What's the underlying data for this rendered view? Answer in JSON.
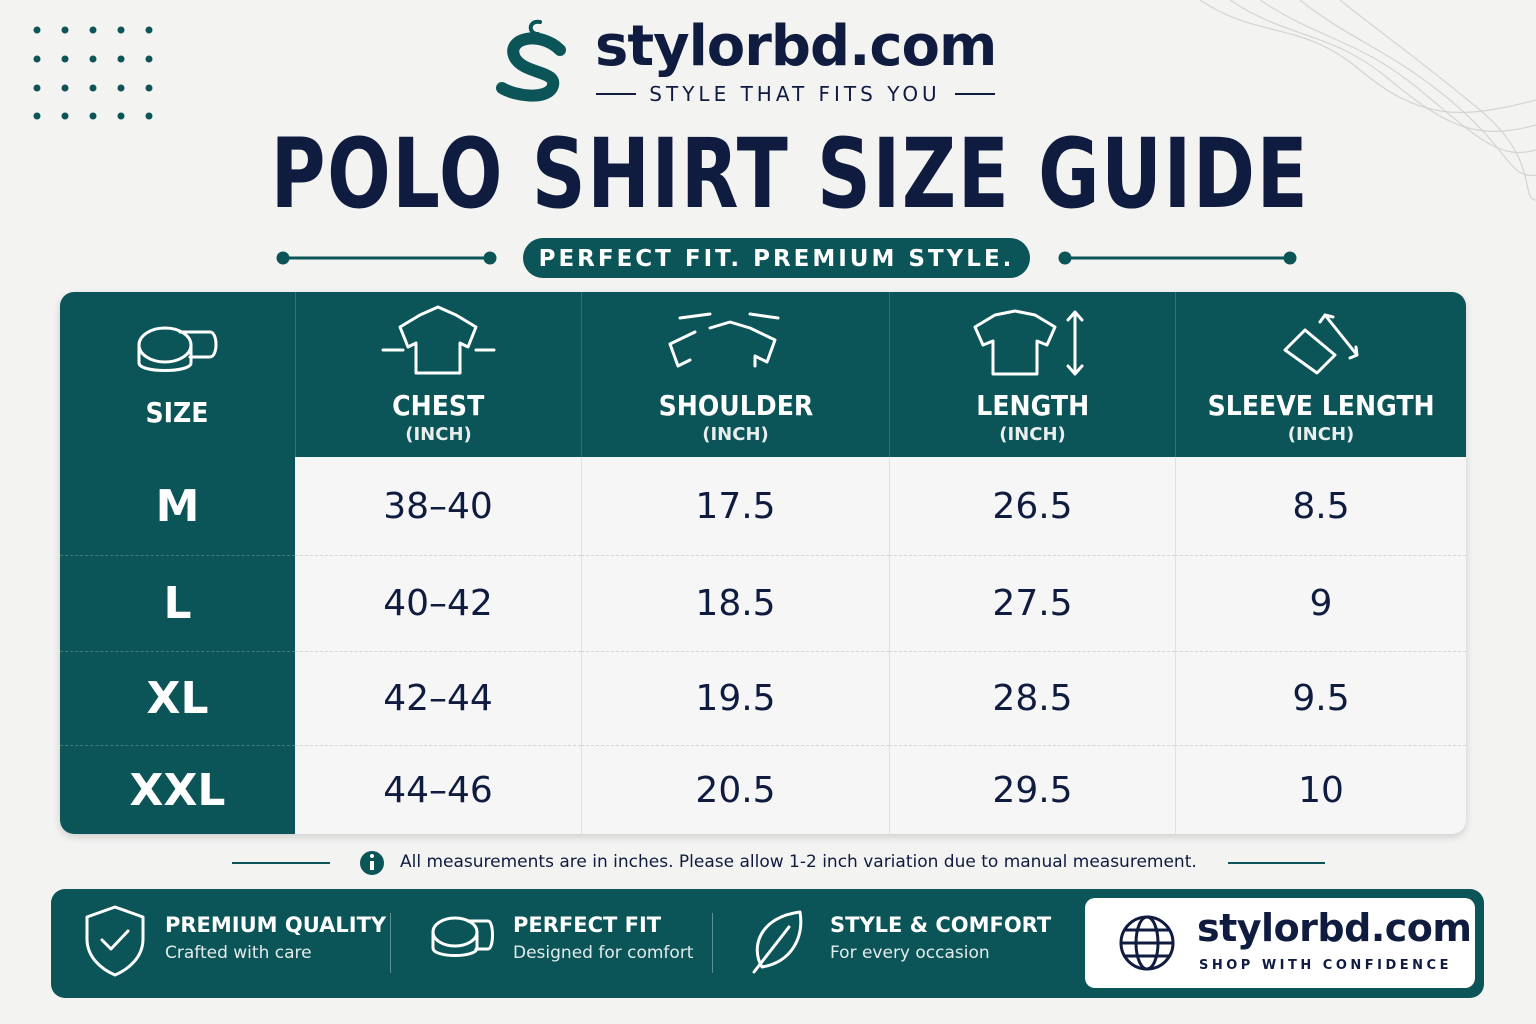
{
  "header": {
    "brand": "stylorbd.com",
    "tagline": "STYLE THAT FITS YOU",
    "title": "POLO SHIRT SIZE GUIDE",
    "subtitle": "PERFECT FIT. PREMIUM STYLE."
  },
  "table": {
    "columns": [
      {
        "name": "SIZE"
      },
      {
        "name": "CHEST",
        "unit": "(INCH)"
      },
      {
        "name": "SHOULDER",
        "unit": "(INCH)"
      },
      {
        "name": "LENGTH",
        "unit": "(INCH)"
      },
      {
        "name": "SLEEVE LENGTH",
        "unit": "(INCH)"
      }
    ],
    "rows": [
      [
        "M",
        "38–40",
        "17.5",
        "26.5",
        "8.5"
      ],
      [
        "L",
        "40–42",
        "18.5",
        "27.5",
        "9"
      ],
      [
        "XL",
        "42–44",
        "19.5",
        "28.5",
        "9.5"
      ],
      [
        "XXL",
        "44–46",
        "20.5",
        "29.5",
        "10"
      ]
    ]
  },
  "note": "All measurements are in inches. Please allow 1-2 inch variation due to manual measurement.",
  "features": [
    {
      "title": "PREMIUM QUALITY",
      "text": "Crafted with care"
    },
    {
      "title": "PERFECT FIT",
      "text": "Designed for comfort"
    },
    {
      "title": "STYLE & COMFORT",
      "text": "For every occasion"
    }
  ],
  "footer": {
    "brand": "stylorbd.com",
    "tagline": "SHOP WITH CONFIDENCE"
  }
}
